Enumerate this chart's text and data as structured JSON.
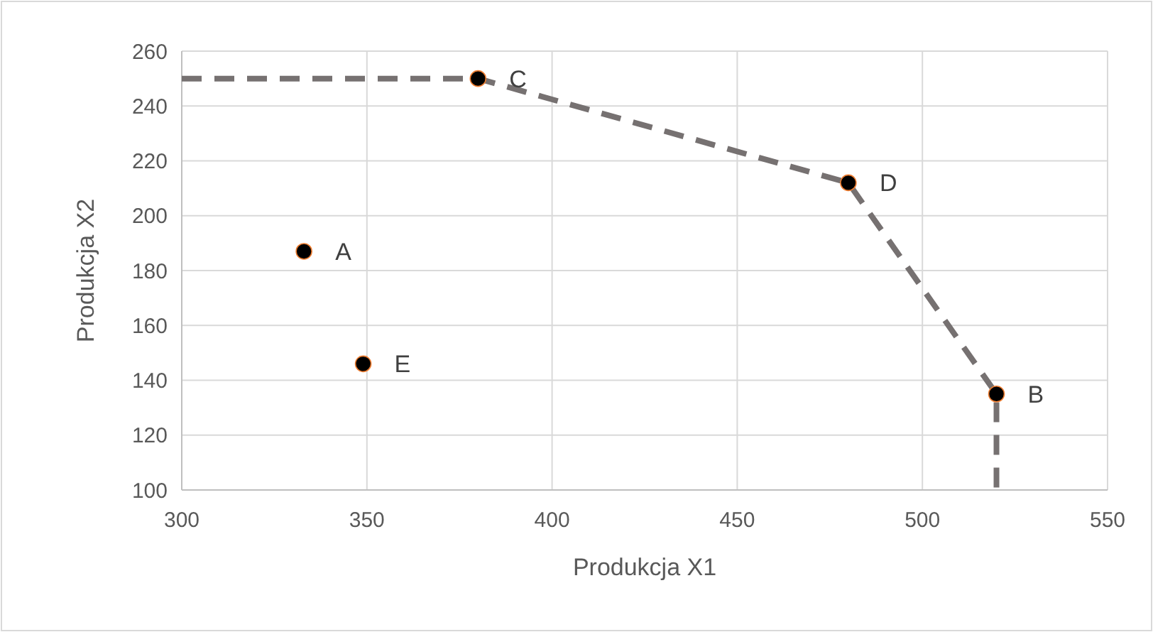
{
  "chart_data": {
    "type": "scatter",
    "xlabel": "Produkcja X1",
    "ylabel": "Produkcja X2",
    "xlim": [
      300,
      550
    ],
    "xticks": [
      300,
      350,
      400,
      450,
      500,
      550
    ],
    "ylim": [
      100,
      260
    ],
    "yticks": [
      100,
      120,
      140,
      160,
      180,
      200,
      220,
      240,
      260
    ],
    "grid": true,
    "series": [
      {
        "type": "line",
        "color": "#767171",
        "line_style": "dashed",
        "marker": "none",
        "x": [
          300,
          380,
          480,
          520,
          520
        ],
        "values": [
          250,
          250,
          212,
          135,
          100
        ]
      },
      {
        "type": "scatter",
        "color": "#000000",
        "marker": "circle",
        "x": [
          333,
          349,
          380,
          480,
          520
        ],
        "values": [
          187,
          146,
          250,
          212,
          135
        ]
      }
    ],
    "annotations": [
      {
        "text": "A",
        "x": 333,
        "y": 187
      },
      {
        "text": "E",
        "x": 349,
        "y": 146
      },
      {
        "text": "C",
        "x": 380,
        "y": 250
      },
      {
        "text": "D",
        "x": 480,
        "y": 212
      },
      {
        "text": "B",
        "x": 520,
        "y": 135
      }
    ]
  }
}
